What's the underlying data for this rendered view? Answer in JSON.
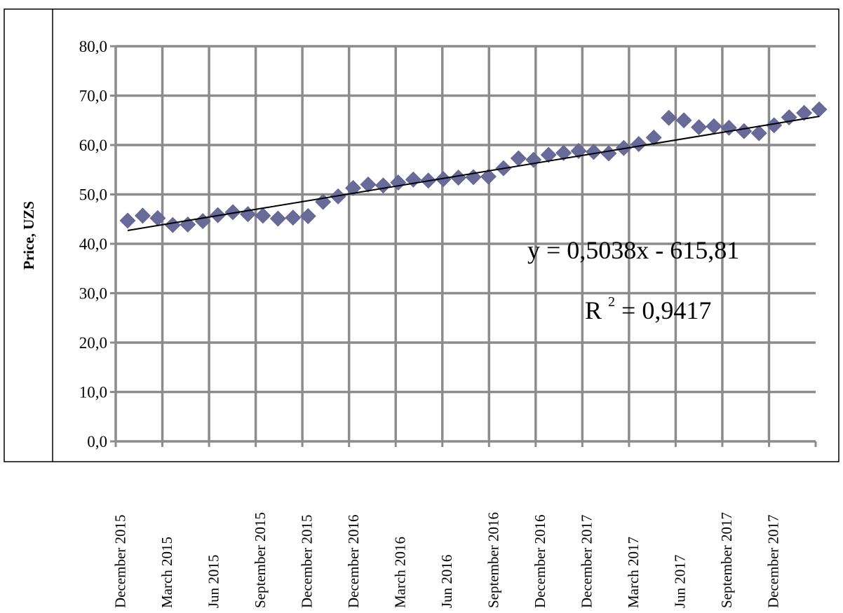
{
  "chart_data": {
    "type": "scatter",
    "title": "",
    "xlabel": "",
    "ylabel": "Price, UZS",
    "ylim": [
      0,
      80
    ],
    "yticks": [
      "0,0",
      "10,0",
      "20,0",
      "30,0",
      "40,0",
      "50,0",
      "60,0",
      "70,0",
      "80,0"
    ],
    "xtick_labels": [
      "December 2015",
      "March  2015",
      "Jun  2015",
      "September 2015",
      "December  2015",
      "December 2016",
      "March  2016",
      "Jun  2016",
      "September 2016",
      "December  2016",
      "December 2017",
      "March  2017",
      "Jun  2017",
      "September 2017",
      "December  2017"
    ],
    "grid": true,
    "legend": "none",
    "series": [
      {
        "marker": "diamond",
        "color": "#6a6a9a",
        "values": [
          44.7,
          45.7,
          45.2,
          43.8,
          43.9,
          44.6,
          45.8,
          46.4,
          46.0,
          45.7,
          45.1,
          45.3,
          45.6,
          48.5,
          49.6,
          51.3,
          52.0,
          51.8,
          52.4,
          53.0,
          52.8,
          53.1,
          53.4,
          53.5,
          53.6,
          55.3,
          57.3,
          57.0,
          58.0,
          58.4,
          58.8,
          58.6,
          58.3,
          59.4,
          60.2,
          61.5,
          65.5,
          65.0,
          63.6,
          63.8,
          63.5,
          62.8,
          62.4,
          64.0,
          65.6,
          66.5,
          67.2
        ]
      }
    ],
    "trendline": {
      "type": "linear",
      "start": 42.7,
      "end": 65.8,
      "equation": "y = 0,5038x - 615,81",
      "r2_label": "R",
      "r2_sup": "2",
      "r2_value": " = 0,9417"
    }
  }
}
